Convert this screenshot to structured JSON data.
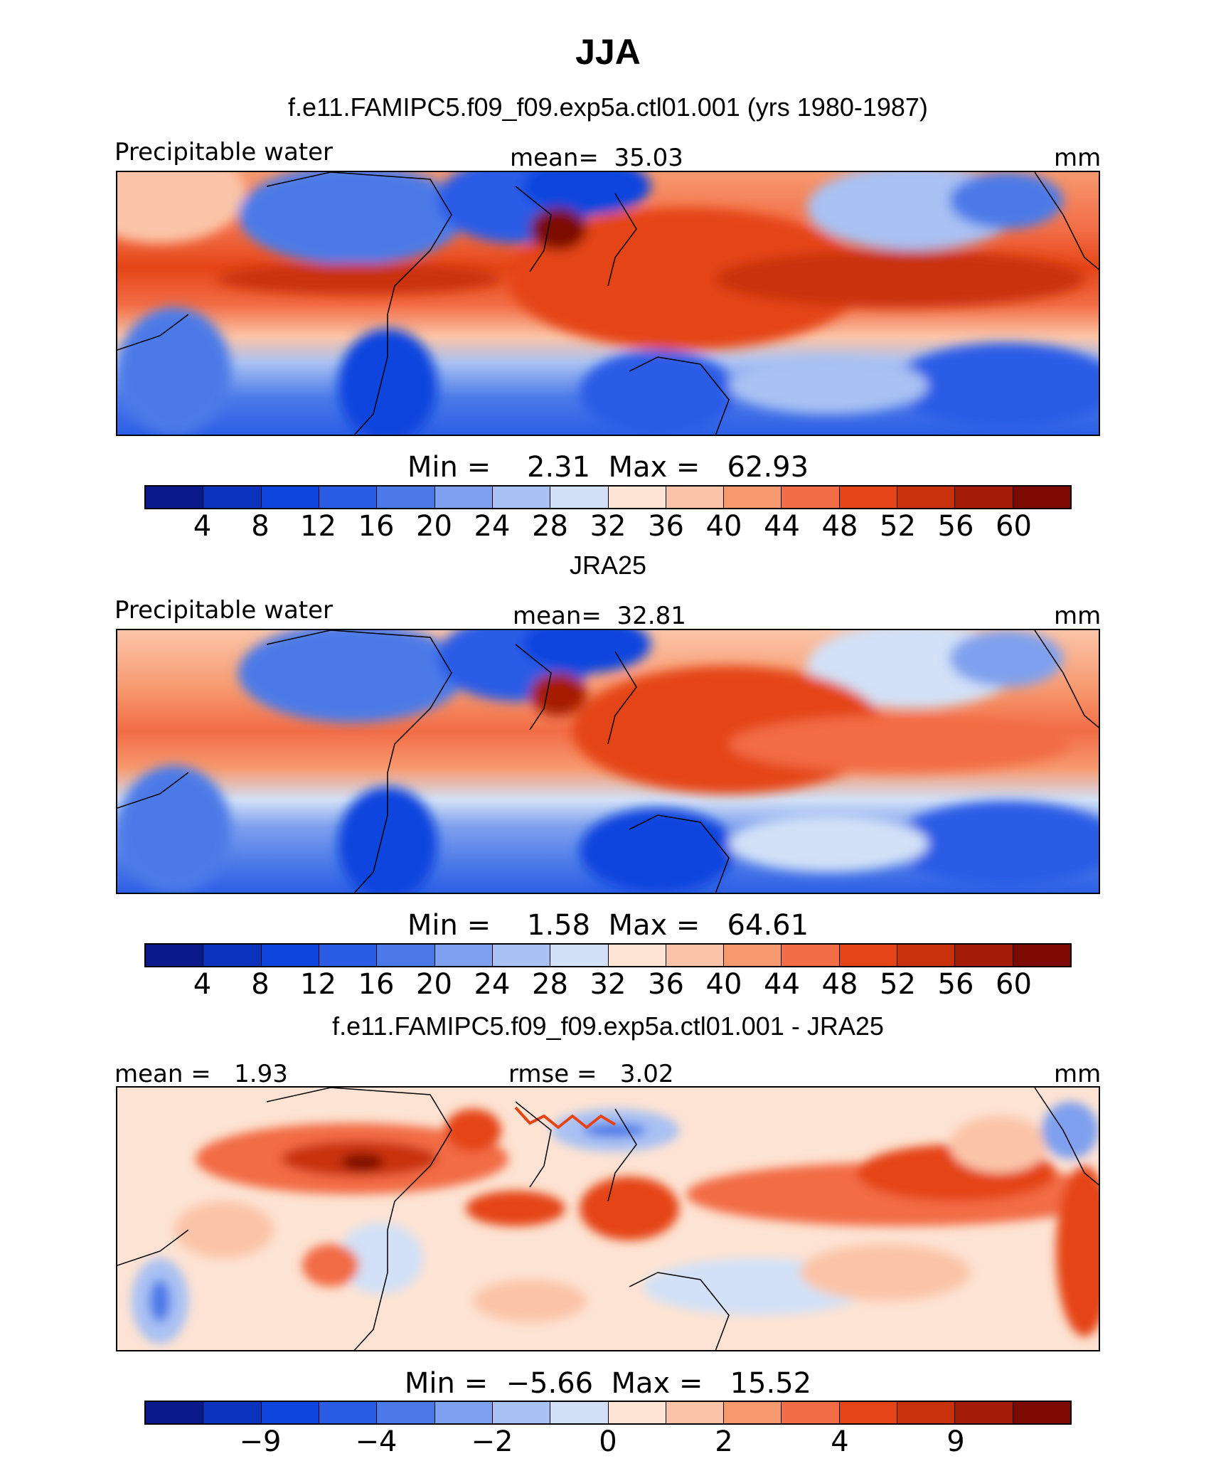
{
  "figure": {
    "title": "JJA"
  },
  "panels": [
    {
      "title": "f.e11.FAMIPC5.f09_f09.exp5a.ctl01.001 (yrs 1980-1987)",
      "left_label": "Precipitable water",
      "center_label": "mean=  35.03",
      "units": "mm",
      "minmax": "Min =    2.31  Max =   62.93"
    },
    {
      "title": "JRA25",
      "left_label": "Precipitable water",
      "center_label": "mean=  32.81",
      "units": "mm",
      "minmax": "Min =    1.58  Max =   64.61"
    },
    {
      "title": "f.e11.FAMIPC5.f09_f09.exp5a.ctl01.001 - JRA25",
      "left_label": "mean =   1.93",
      "center_label": "rmse =   3.02",
      "units": "mm",
      "minmax": "Min =  −5.66  Max =   15.52"
    }
  ],
  "colorbars": {
    "full": {
      "colors": [
        "#0a1a8c",
        "#0b33bd",
        "#0e45de",
        "#2a5ce6",
        "#4b7ae8",
        "#7fa0ee",
        "#a9c1f3",
        "#d2e1f7",
        "#fde3d3",
        "#fbc4a8",
        "#f7996f",
        "#f26c45",
        "#e54516",
        "#c9300c",
        "#a51c06",
        "#7d0a02"
      ],
      "tick_labels": [
        "4",
        "8",
        "12",
        "16",
        "20",
        "24",
        "28",
        "32",
        "36",
        "40",
        "44",
        "48",
        "52",
        "56",
        "60"
      ]
    },
    "diff": {
      "colors": [
        "#0a1a8c",
        "#0b33bd",
        "#0e45de",
        "#2a5ce6",
        "#4b7ae8",
        "#7fa0ee",
        "#a9c1f3",
        "#d2e1f7",
        "#fde3d3",
        "#fbc4a8",
        "#f7996f",
        "#f26c45",
        "#e54516",
        "#c9300c",
        "#a51c06",
        "#7d0a02"
      ],
      "tick_labels": [
        "−9",
        "−4",
        "−2",
        "0",
        "2",
        "4",
        "9"
      ],
      "tick_boundaries": [
        2,
        4,
        6,
        8,
        10,
        12,
        14
      ]
    }
  }
}
